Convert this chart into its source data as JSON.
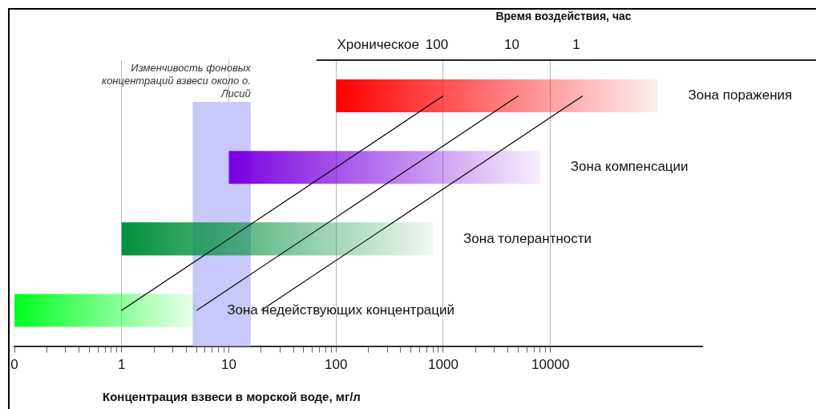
{
  "chart_data": {
    "type": "bar",
    "orientation": "horizontal",
    "xlabel": "Концентрация взвеси в морской воде, мг/л",
    "categories": [
      "Зона поражения",
      "Зона компенсации",
      "Зона толерантности",
      "Зона недействующих концентраций"
    ],
    "base": [
      100,
      10,
      1,
      0.1
    ],
    "values": [
      99900,
      7990,
      799,
      4.9
    ],
    "colors": [
      "#ff0000",
      "#7a00e0",
      "#00903a",
      "#00ff20"
    ],
    "series": [
      {
        "name": "100",
        "type": "line",
        "color": "#000000",
        "values": [
          1000,
          100,
          10,
          1
        ]
      },
      {
        "name": "10",
        "type": "line",
        "color": "#000000",
        "values": [
          5000,
          500,
          50,
          5
        ]
      },
      {
        "name": "1",
        "type": "line",
        "color": "#000000",
        "values": [
          20000,
          2000,
          200,
          20
        ]
      }
    ],
    "log": "x",
    "xlim": [
      0.1,
      260000
    ],
    "xticks": [
      {
        "value": 0.1,
        "label": "0"
      },
      {
        "value": 0.2,
        "label": null
      },
      {
        "value": 0.3,
        "label": null
      },
      {
        "value": 0.4,
        "label": null
      },
      {
        "value": 0.5,
        "label": null
      },
      {
        "value": 0.6,
        "label": null
      },
      {
        "value": 0.7,
        "label": null
      },
      {
        "value": 0.8,
        "label": null
      },
      {
        "value": 0.9,
        "label": null
      },
      1,
      {
        "value": 2,
        "label": null
      },
      {
        "value": 3,
        "label": null
      },
      {
        "value": 4,
        "label": null
      },
      {
        "value": 5,
        "label": null
      },
      {
        "value": 6,
        "label": null
      },
      {
        "value": 7,
        "label": null
      },
      {
        "value": 8,
        "label": null
      },
      {
        "value": 9,
        "label": null
      },
      10,
      {
        "value": 20,
        "label": null
      },
      {
        "value": 30,
        "label": null
      },
      {
        "value": 40,
        "label": null
      },
      {
        "value": 50,
        "label": null
      },
      {
        "value": 60,
        "label": null
      },
      {
        "value": 70,
        "label": null
      },
      {
        "value": 80,
        "label": null
      },
      {
        "value": 90,
        "label": null
      },
      100,
      {
        "value": 200,
        "label": null
      },
      {
        "value": 300,
        "label": null
      },
      {
        "value": 400,
        "label": null
      },
      {
        "value": 500,
        "label": null
      },
      {
        "value": 600,
        "label": null
      },
      {
        "value": 700,
        "label": null
      },
      {
        "value": 800,
        "label": null
      },
      {
        "value": 900,
        "label": null
      },
      1000,
      {
        "value": 2000,
        "label": null
      },
      {
        "value": 3000,
        "label": null
      },
      {
        "value": 4000,
        "label": null
      },
      {
        "value": 5000,
        "label": null
      },
      {
        "value": 6000,
        "label": null
      },
      {
        "value": 7000,
        "label": null
      },
      {
        "value": 8000,
        "label": null
      },
      {
        "value": 9000,
        "label": null
      },
      10000
    ],
    "bands": [
      {
        "axis": "x",
        "from": 4.6,
        "to": 16,
        "label": "Изменчивость фоновых концентраций взвеси около о. Лисий",
        "color": "#c8c8fa"
      }
    ],
    "annotations": [
      "Время воздействия, час",
      "Хроническое"
    ],
    "grid": "x",
    "legend": false,
    "marker": "none",
    "line_style": "solid",
    "tick_labels": "x"
  }
}
